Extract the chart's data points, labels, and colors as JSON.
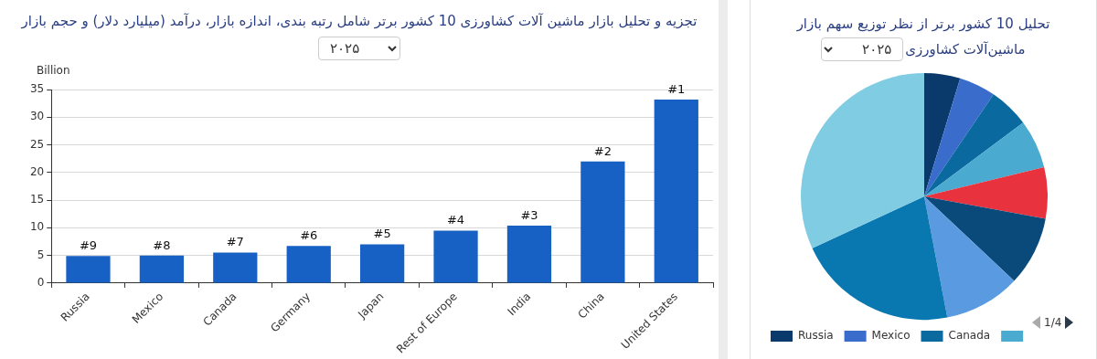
{
  "chart_data": [
    {
      "type": "bar",
      "title": "تجزیه و تحلیل بازار ماشین آلات کشاورزی 10 کشور برتر شامل رتبه بندی، اندازه بازار، درآمد (میلیارد دلار) و حجم بازار",
      "subtitle": "۲۰۲۵",
      "ylabel": "Billion",
      "categories": [
        "Russia",
        "Mexico",
        "Canada",
        "Germany",
        "Japan",
        "Rest of Europe",
        "India",
        "China",
        "United States"
      ],
      "values": [
        4.9,
        5.0,
        5.5,
        6.7,
        7.0,
        9.5,
        10.4,
        22.0,
        33.2
      ],
      "color": "#1760c4",
      "annotations": [
        {
          "text": "#9",
          "x": "Russia",
          "y": 4.9
        },
        {
          "text": "#8",
          "x": "Mexico",
          "y": 5.0
        },
        {
          "text": "#7",
          "x": "Canada",
          "y": 5.5
        },
        {
          "text": "#6",
          "x": "Germany",
          "y": 6.7
        },
        {
          "text": "#5",
          "x": "Japan",
          "y": 7.0
        },
        {
          "text": "#4",
          "x": "Rest of Europe",
          "y": 9.5
        },
        {
          "text": "#3",
          "x": "India",
          "y": 10.4
        },
        {
          "text": "#2",
          "x": "China",
          "y": 22.0
        },
        {
          "text": "#1",
          "x": "United States",
          "y": 33.2
        }
      ],
      "ylim": [
        0,
        35
      ],
      "yticks": [
        0,
        5,
        10,
        15,
        20,
        25,
        30,
        35
      ],
      "grid": "y",
      "legend": false
    },
    {
      "type": "pie",
      "title": "تحلیل 10 کشور برتر از نظر توزیع سهم بازار ماشین‌آلات کشاورزی",
      "subtitle": "۲۰۲۵",
      "categories": [
        "Russia",
        "Mexico",
        "Canada",
        null,
        null,
        null,
        null,
        null,
        null
      ],
      "values": [
        4.7,
        4.8,
        5.3,
        6.4,
        6.7,
        9.1,
        10.0,
        21.1,
        31.9
      ],
      "colors": [
        "#0a3a6b",
        "#3a6ccc",
        "#0a6aa0",
        "#4aaad0",
        "#e8333f",
        "#0a4a7a",
        "#5a9ae0",
        "#0a78b0",
        "#80cce2"
      ],
      "legend": "bottom",
      "annotations": [
        "1/4"
      ]
    }
  ]
}
